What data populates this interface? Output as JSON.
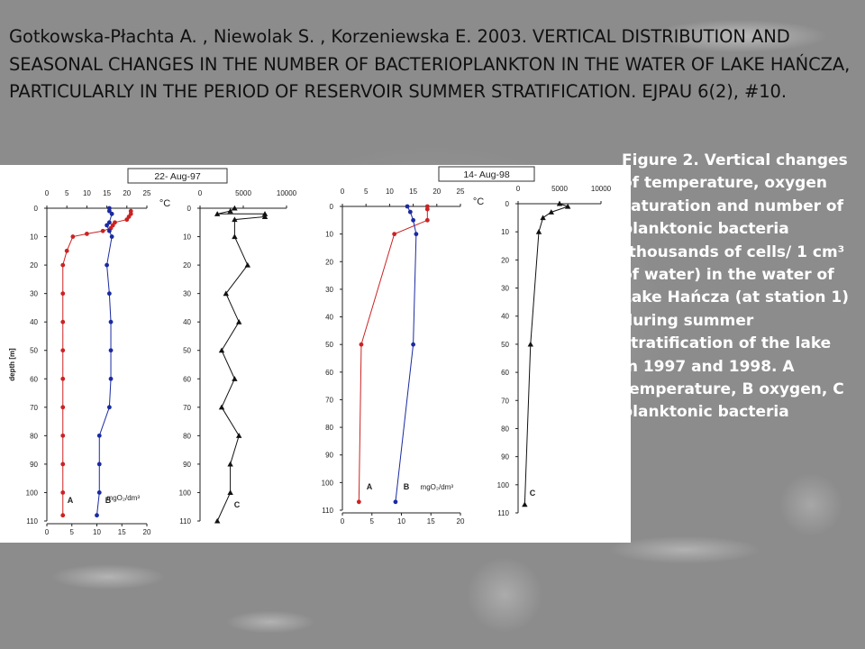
{
  "citation": "Gotkowska-Płachta A. , Niewolak S. , Korzeniewska E. 2003. VERTICAL DISTRIBUTION AND SEASONAL CHANGES IN THE NUMBER OF BACTERIOPLANKTON IN THE WATER OF LAKE HAŃCZA, PARTICULARLY IN THE PERIOD OF RESERVOIR SUMMER STRATIFICATION. EJPAU 6(2), #10.",
  "caption": "Figure 2. Vertical changes of temperature, oxygen saturation and number of planktonic bacteria (thousands of cells/ 1 cm³ of water) in the water of Lake Hańcza (at station 1) during summer stratification of the lake in 1997 and 1998. A temperature, B oxygen, C planktonic bacteria",
  "colors": {
    "temperature": "#cc2222",
    "oxygen": "#1a2aa0",
    "bacteria": "#111111"
  },
  "chart_data": [
    {
      "type": "line",
      "title": "22- Aug-97",
      "ylabel": "depth [m]",
      "ylim": [
        0,
        110
      ],
      "yticks": [
        0,
        10,
        20,
        30,
        40,
        50,
        60,
        70,
        80,
        90,
        100,
        110
      ],
      "top_axis": {
        "unit": "°C",
        "lim": [
          0,
          25
        ],
        "ticks": [
          0,
          5,
          10,
          15,
          20,
          25
        ]
      },
      "bottom_axis": {
        "unit": "mgO₂/dm³",
        "lim": [
          0,
          20
        ],
        "ticks": [
          0,
          5,
          10,
          15,
          20
        ]
      },
      "series": [
        {
          "name": "A",
          "axis": "top",
          "color": "#cc2222",
          "points": [
            [
              21,
              1
            ],
            [
              21,
              2
            ],
            [
              20.5,
              3
            ],
            [
              20,
              4
            ],
            [
              17,
              5
            ],
            [
              16.5,
              6
            ],
            [
              16,
              7
            ],
            [
              14,
              8
            ],
            [
              10,
              9
            ],
            [
              6.5,
              10
            ],
            [
              5,
              15
            ],
            [
              4,
              20
            ],
            [
              4,
              30
            ],
            [
              4,
              40
            ],
            [
              4,
              50
            ],
            [
              4,
              60
            ],
            [
              4,
              70
            ],
            [
              4,
              80
            ],
            [
              4,
              90
            ],
            [
              4,
              100
            ],
            [
              4,
              108
            ]
          ]
        },
        {
          "name": "B",
          "axis": "bottom",
          "color": "#1a2aa0",
          "points": [
            [
              12.5,
              0
            ],
            [
              12.5,
              1
            ],
            [
              13,
              2
            ],
            [
              12.5,
              5
            ],
            [
              12,
              6
            ],
            [
              12.5,
              8
            ],
            [
              13,
              10
            ],
            [
              12,
              20
            ],
            [
              12.5,
              30
            ],
            [
              12.8,
              40
            ],
            [
              12.8,
              50
            ],
            [
              12.8,
              60
            ],
            [
              12.5,
              70
            ],
            [
              10.5,
              80
            ],
            [
              10.5,
              90
            ],
            [
              10.5,
              100
            ],
            [
              10,
              108
            ]
          ]
        }
      ]
    },
    {
      "type": "line",
      "ylim": [
        0,
        110
      ],
      "yticks": [
        0,
        10,
        20,
        30,
        40,
        50,
        60,
        70,
        80,
        90,
        100,
        110
      ],
      "top_axis": {
        "lim": [
          0,
          10000
        ],
        "ticks": [
          0,
          5000,
          10000
        ]
      },
      "series": [
        {
          "name": "C",
          "color": "#111111",
          "points": [
            [
              4000,
              0
            ],
            [
              3500,
              1
            ],
            [
              2000,
              2
            ],
            [
              7500,
              2
            ],
            [
              7500,
              3
            ],
            [
              4000,
              4
            ],
            [
              4000,
              10
            ],
            [
              5500,
              20
            ],
            [
              3000,
              30
            ],
            [
              4500,
              40
            ],
            [
              2500,
              50
            ],
            [
              4000,
              60
            ],
            [
              2500,
              70
            ],
            [
              4500,
              80
            ],
            [
              3500,
              90
            ],
            [
              3500,
              100
            ],
            [
              2000,
              110
            ]
          ]
        }
      ]
    },
    {
      "type": "line",
      "title": "14- Aug-98",
      "ylim": [
        0,
        110
      ],
      "yticks": [
        0,
        10,
        20,
        30,
        40,
        50,
        60,
        70,
        80,
        90,
        100,
        110
      ],
      "top_axis": {
        "unit": "°C",
        "lim": [
          0,
          25
        ],
        "ticks": [
          0,
          5,
          10,
          15,
          20,
          25
        ]
      },
      "bottom_axis": {
        "unit": "mgO₂/dm³",
        "lim": [
          0,
          20
        ],
        "ticks": [
          0,
          5,
          10,
          15,
          20
        ]
      },
      "series": [
        {
          "name": "A",
          "axis": "top",
          "color": "#cc2222",
          "points": [
            [
              18,
              0
            ],
            [
              18,
              1
            ],
            [
              18,
              5
            ],
            [
              11,
              10
            ],
            [
              4,
              50
            ],
            [
              3.5,
              107
            ]
          ]
        },
        {
          "name": "B",
          "axis": "bottom",
          "color": "#1a2aa0",
          "points": [
            [
              11,
              0
            ],
            [
              11.5,
              2
            ],
            [
              12,
              5
            ],
            [
              12.5,
              10
            ],
            [
              12,
              50
            ],
            [
              9,
              107
            ]
          ]
        }
      ]
    },
    {
      "type": "line",
      "ylim": [
        0,
        110
      ],
      "yticks": [
        0,
        10,
        20,
        30,
        40,
        50,
        60,
        70,
        80,
        90,
        100,
        110
      ],
      "top_axis": {
        "lim": [
          0,
          10000
        ],
        "ticks": [
          0,
          5000,
          10000
        ]
      },
      "series": [
        {
          "name": "C",
          "color": "#111111",
          "points": [
            [
              5000,
              0
            ],
            [
              6000,
              1
            ],
            [
              4000,
              3
            ],
            [
              3000,
              5
            ],
            [
              2500,
              10
            ],
            [
              1500,
              50
            ],
            [
              800,
              107
            ]
          ]
        }
      ]
    }
  ]
}
